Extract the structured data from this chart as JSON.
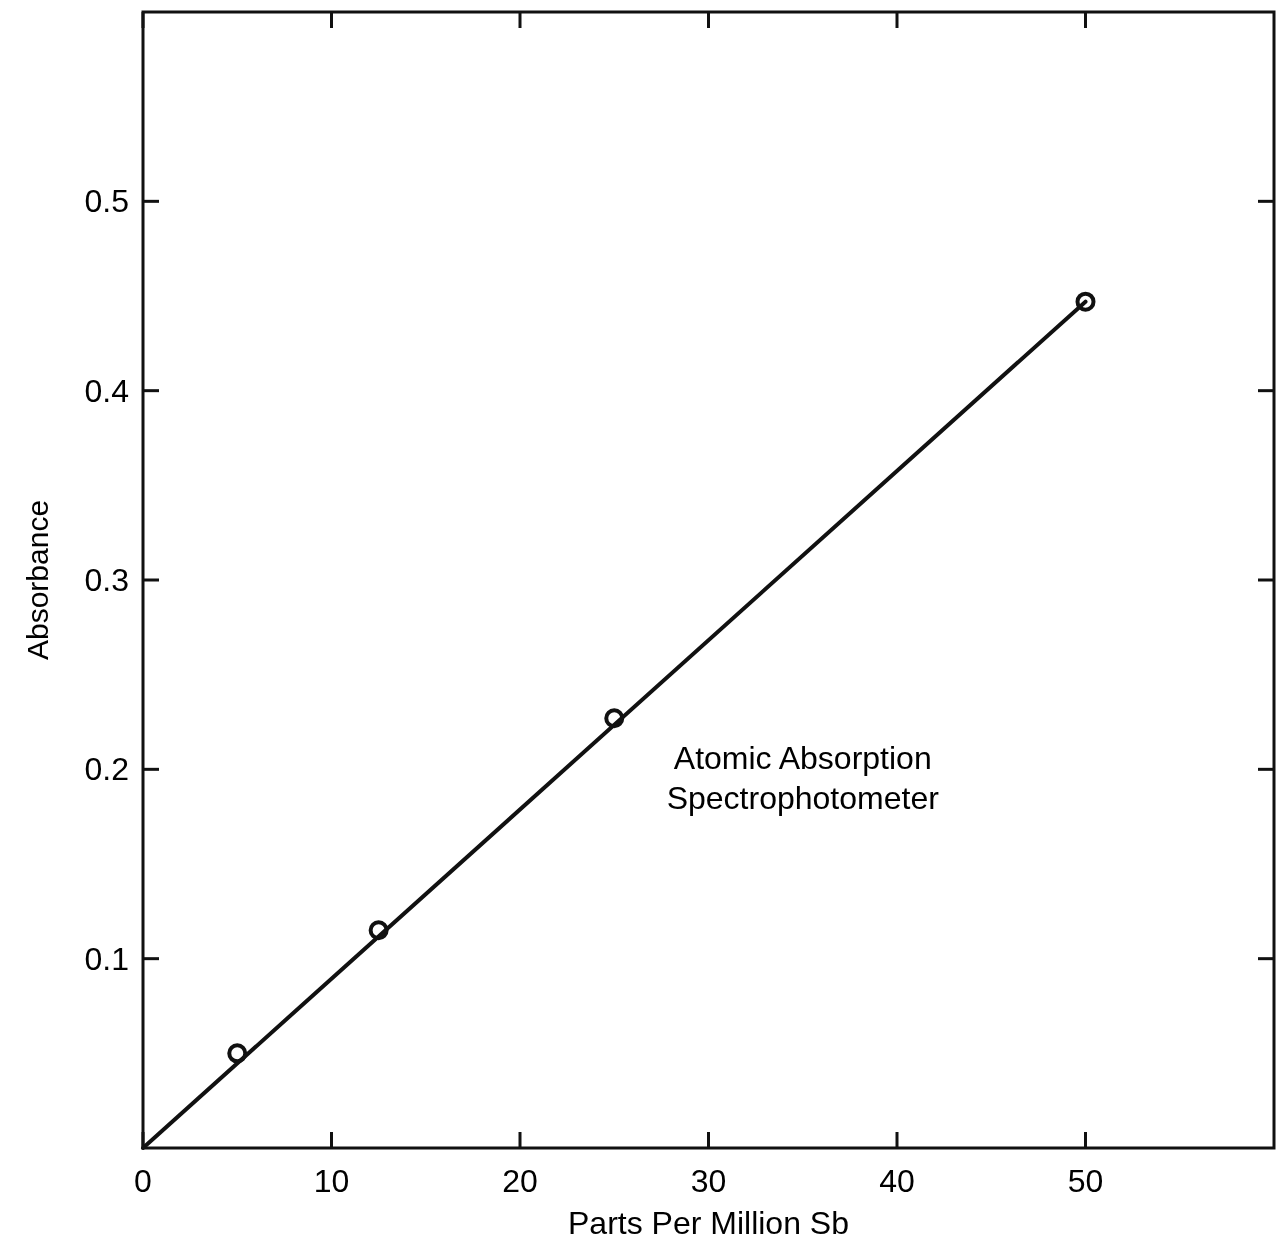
{
  "chart_data": {
    "type": "scatter",
    "xlabel": "Parts Per Million Sb",
    "ylabel": "Absorbance",
    "annotations": [
      "Atomic Absorption Spectrophotometer"
    ],
    "series": [
      {
        "color": "#111111",
        "x": [
          5,
          12.5,
          25,
          50
        ],
        "values": [
          0.05,
          0.115,
          0.227,
          0.447
        ],
        "marker": "circle"
      },
      {
        "type": "line",
        "color": "#111111",
        "x": [
          0,
          50
        ],
        "values": [
          0,
          0.447
        ],
        "marker": "none"
      }
    ],
    "xlim": [
      0,
      60
    ],
    "ylim": [
      0,
      0.6
    ],
    "xticks": [
      0,
      10,
      20,
      30,
      40,
      50
    ],
    "yticks": [
      0.1,
      0.2,
      0.3,
      0.4,
      0.5
    ],
    "grid": false
  }
}
